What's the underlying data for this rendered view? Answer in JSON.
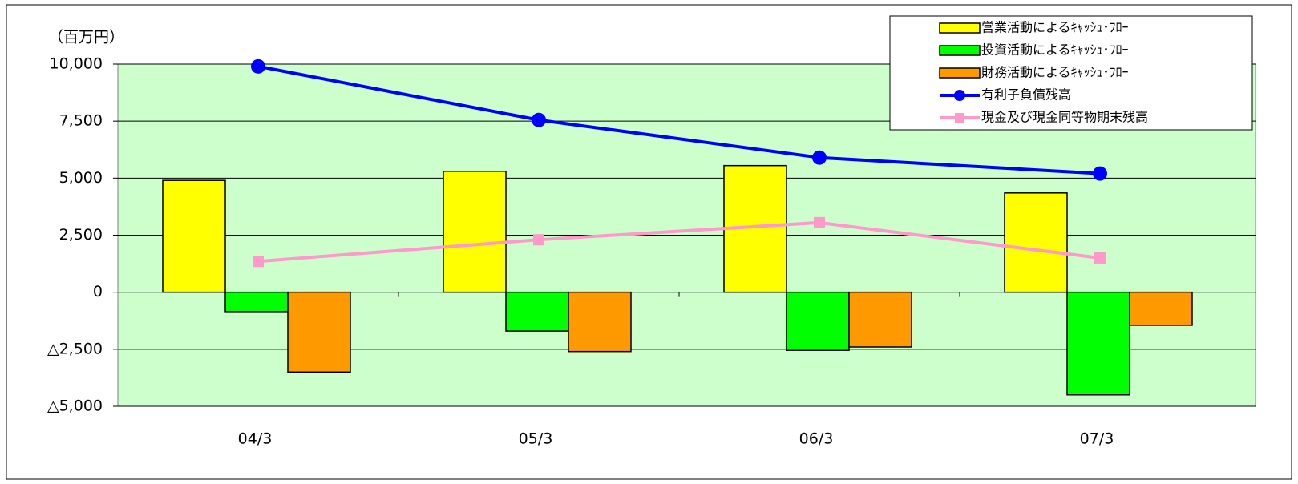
{
  "chart_data": {
    "type": "bar_line",
    "y_label": "（百万円）",
    "categories": [
      "04/3",
      "05/3",
      "06/3",
      "07/3"
    ],
    "series": [
      {
        "name": "営業活動によるｷｬｯｼｭ･ﾌﾛｰ",
        "type": "bar",
        "color": "#ffff00",
        "values": [
          4900,
          5300,
          5550,
          4350
        ]
      },
      {
        "name": "投資活動によるｷｬｯｼｭ･ﾌﾛｰ",
        "type": "bar",
        "color": "#00ff00",
        "values": [
          -850,
          -1700,
          -2550,
          -4500
        ]
      },
      {
        "name": "財務活動によるｷｬｯｼｭ･ﾌﾛｰ",
        "type": "bar",
        "color": "#ff9900",
        "values": [
          -3500,
          -2600,
          -2400,
          -1450
        ]
      },
      {
        "name": "有利子負債残高",
        "type": "line",
        "marker": "circle",
        "color": "#0000ff",
        "values": [
          9900,
          7550,
          5900,
          5200
        ]
      },
      {
        "name": "現金及び現金同等物期末残高",
        "type": "line",
        "marker": "square",
        "color": "#ff99cc",
        "values": [
          1350,
          2300,
          3050,
          1500
        ]
      }
    ],
    "ylim": [
      -5000,
      10000
    ],
    "yticks": [
      {
        "value": -5000,
        "label": "△5,000"
      },
      {
        "value": -2500,
        "label": "△2,500"
      },
      0,
      {
        "value": 2500,
        "label": "2,500"
      },
      {
        "value": 5000,
        "label": "5,000"
      },
      {
        "value": 7500,
        "label": "7,500"
      },
      {
        "value": 10000,
        "label": "10,000"
      }
    ],
    "grid": true,
    "legend": "upper right",
    "plot_background": "#ccffcc"
  }
}
